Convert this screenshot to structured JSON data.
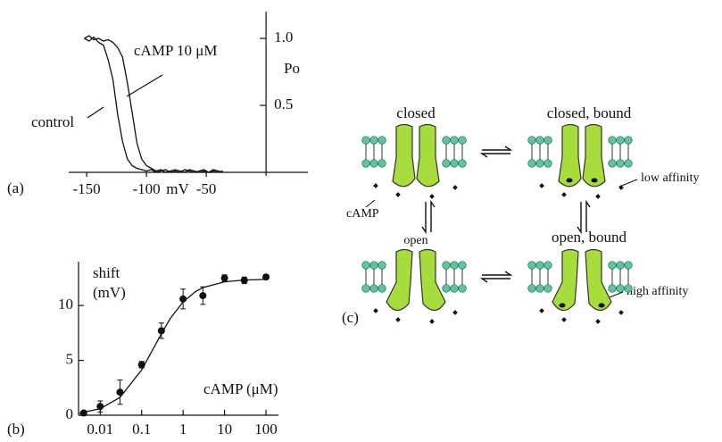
{
  "chart_data": [
    {
      "type": "line",
      "panel": "(a)",
      "x": [
        -152,
        -148,
        -144,
        -140,
        -136,
        -132,
        -128,
        -124,
        -120,
        -116,
        -112,
        -108,
        -104,
        -100,
        -96,
        -92,
        -88,
        -84,
        -80,
        -76,
        -72,
        -68,
        -64,
        -60,
        -56,
        -52,
        -48,
        -44,
        -40,
        -36
      ],
      "series": [
        {
          "name": "control",
          "color": "#111111",
          "values": [
            1.0,
            0.98,
            1.01,
            0.97,
            0.95,
            0.84,
            0.69,
            0.43,
            0.23,
            0.1,
            0.05,
            0.03,
            0.02,
            0.01,
            0.02,
            0.0,
            0.01,
            0.02,
            0.0,
            0.01,
            0.0,
            0.02,
            0.01,
            0.0,
            0.01,
            0.02,
            0.0,
            0.01,
            0.0,
            0.01
          ]
        },
        {
          "name": "cAMP 10 μM",
          "color": "#111111",
          "values": [
            1.0,
            1.02,
            0.99,
            1.0,
            0.98,
            0.99,
            0.97,
            0.93,
            0.86,
            0.67,
            0.45,
            0.22,
            0.1,
            0.05,
            0.03,
            0.01,
            0.02,
            0.0,
            0.01,
            0.02,
            0.01,
            0.0,
            0.02,
            0.01,
            0.0,
            0.01,
            0.0,
            0.02,
            0.01,
            0.0
          ]
        }
      ],
      "x_label": "mV",
      "y_label": "Po",
      "xlim": [
        -165,
        35
      ],
      "xticks": [
        -150,
        -100,
        -50
      ],
      "ylim": [
        0,
        1.2
      ],
      "yticks": [
        0.5,
        {
          "value": 1,
          "label": "1.0"
        }
      ]
    },
    {
      "type": "scatter",
      "panel": "(b)",
      "x": [
        0.004,
        0.01,
        0.03,
        0.1,
        0.3,
        1,
        3,
        10,
        30,
        100
      ],
      "values": [
        0.2,
        0.8,
        2.1,
        4.6,
        7.7,
        10.6,
        10.9,
        12.5,
        12.3,
        12.6
      ],
      "errors": [
        0.2,
        0.5,
        1.1,
        0.3,
        0.7,
        0.9,
        0.8,
        0.3,
        0.3,
        0.2
      ],
      "color": "#111111",
      "fit": {
        "x": [
          0.003,
          0.01,
          0.03,
          0.1,
          0.2,
          0.3,
          0.5,
          1,
          2,
          3,
          10,
          30,
          100
        ],
        "values": [
          0.18,
          0.59,
          1.62,
          4.13,
          6.2,
          7.44,
          8.86,
          10.33,
          11.27,
          11.63,
          12.16,
          12.32,
          12.38
        ]
      },
      "y_label": [
        "shift",
        "(mV)"
      ],
      "x_label": "cAMP (μM)",
      "log_x": true,
      "xlim": [
        0.003,
        200
      ],
      "xticks": [
        0.01,
        0.1,
        1,
        10,
        100
      ],
      "ylim": [
        0,
        14
      ],
      "yticks": [
        0,
        5,
        10
      ]
    }
  ],
  "diagram": {
    "panel": "(c)",
    "states": [
      "closed",
      "closed, bound",
      "open",
      "open, bound"
    ],
    "notes": [
      "low affinity",
      "high affinity",
      "cAMP"
    ]
  }
}
